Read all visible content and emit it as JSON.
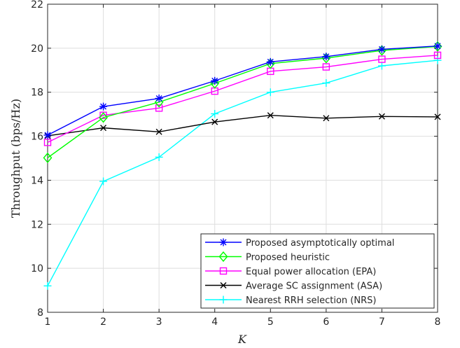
{
  "chart_data": {
    "type": "line",
    "xlabel": "K",
    "ylabel": "Throughput (bps/Hz)",
    "xlim": [
      1,
      8
    ],
    "ylim": [
      8,
      22
    ],
    "xticks": [
      1,
      2,
      3,
      4,
      5,
      6,
      7,
      8
    ],
    "yticks": [
      8,
      10,
      12,
      14,
      16,
      18,
      20,
      22
    ],
    "grid": true,
    "legend_position": "bottom-right",
    "x": [
      1,
      2,
      3,
      4,
      5,
      6,
      7,
      8
    ],
    "series": [
      {
        "name": "Proposed asymptotically optimal",
        "color": "#0000ff",
        "marker": "asterisk",
        "values": [
          16.05,
          17.35,
          17.72,
          18.52,
          19.38,
          19.62,
          19.95,
          20.1
        ]
      },
      {
        "name": "Proposed heuristic",
        "color": "#00ff00",
        "marker": "diamond",
        "values": [
          15.02,
          16.85,
          17.55,
          18.4,
          19.3,
          19.55,
          19.9,
          20.08
        ]
      },
      {
        "name": "Equal power allocation (EPA)",
        "color": "#ff00ff",
        "marker": "square",
        "values": [
          15.72,
          16.95,
          17.28,
          18.05,
          18.95,
          19.15,
          19.5,
          19.68
        ]
      },
      {
        "name": "Average SC assignment (ASA)",
        "color": "#000000",
        "marker": "x",
        "values": [
          16.02,
          16.38,
          16.2,
          16.65,
          16.95,
          16.82,
          16.9,
          16.88
        ]
      },
      {
        "name": "Nearest RRH selection (NRS)",
        "color": "#00ffff",
        "marker": "plus",
        "values": [
          9.2,
          13.95,
          15.05,
          17.02,
          18.0,
          18.42,
          19.2,
          19.45
        ]
      }
    ]
  }
}
